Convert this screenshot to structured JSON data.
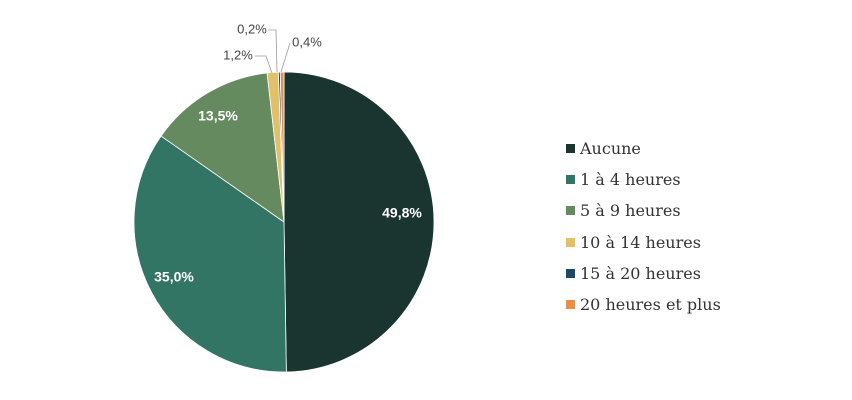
{
  "chart_data": {
    "type": "pie",
    "title": "",
    "categories": [
      "Aucune",
      "1 à 4 heures",
      "5 à 9 heures",
      "10 à 14 heures",
      "15 à 20 heures",
      "20 heures et plus"
    ],
    "values": [
      49.8,
      35.0,
      13.5,
      1.2,
      0.2,
      0.4
    ],
    "labels": [
      "49,8%",
      "35,0%",
      "13,5%",
      "1,2%",
      "0,2%",
      "0,4%"
    ],
    "colors": [
      "#1a3530",
      "#337565",
      "#658a60",
      "#e2c06a",
      "#1e4863",
      "#e8904a"
    ],
    "legend_position": "right",
    "clockwise": true,
    "start_angle": "top"
  }
}
